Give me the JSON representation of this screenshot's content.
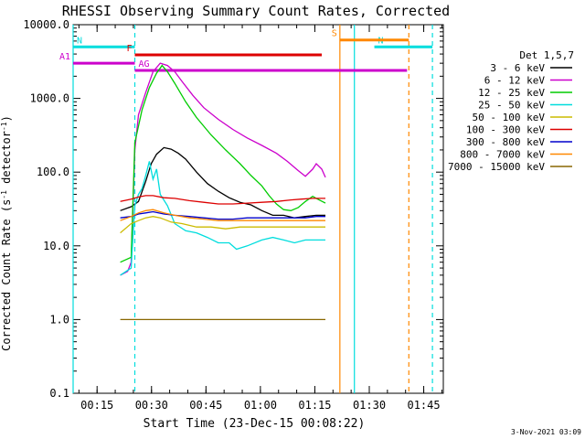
{
  "chart_data": {
    "type": "line",
    "title": "RHESSI Observing Summary Count Rates, Corrected",
    "xlabel": "Start Time (23-Dec-15 00:08:22)",
    "ylabel": "Corrected Count Rate (s⁻¹ detector⁻¹)",
    "ylabel_parts": {
      "pre": "Corrected Count Rate (s",
      "sup1": "-1",
      "mid": " detector",
      "sup2": "-1",
      "post": ")"
    },
    "x_unit": "minutes after 00:08:22",
    "xlim": [
      0,
      102
    ],
    "ylim": [
      0.1,
      10000
    ],
    "y_scale": "log",
    "grid": false,
    "x_ticks": [
      {
        "x": 6.6,
        "label": "00:15"
      },
      {
        "x": 21.6,
        "label": "00:30"
      },
      {
        "x": 36.6,
        "label": "00:45"
      },
      {
        "x": 51.6,
        "label": "01:00"
      },
      {
        "x": 66.6,
        "label": "01:15"
      },
      {
        "x": 81.6,
        "label": "01:30"
      },
      {
        "x": 96.6,
        "label": "01:45"
      }
    ],
    "y_ticks": [
      {
        "y": 0.1,
        "label": "0.1"
      },
      {
        "y": 1,
        "label": "1.0"
      },
      {
        "y": 10,
        "label": "10.0"
      },
      {
        "y": 100,
        "label": "100.0"
      },
      {
        "y": 1000,
        "label": "1000.0"
      },
      {
        "y": 10000,
        "label": "10000.0"
      }
    ],
    "legend_title": "Det 1,5,7",
    "legend_position": "right",
    "series": [
      {
        "name": "3 - 6 keV",
        "color": "#000000",
        "points": [
          [
            13,
            30
          ],
          [
            16,
            34
          ],
          [
            18,
            40
          ],
          [
            20,
            75
          ],
          [
            21.5,
            130
          ],
          [
            23,
            175
          ],
          [
            25,
            215
          ],
          [
            27,
            205
          ],
          [
            29,
            180
          ],
          [
            31,
            150
          ],
          [
            34,
            100
          ],
          [
            37,
            70
          ],
          [
            40,
            55
          ],
          [
            43,
            45
          ],
          [
            46,
            39
          ],
          [
            49,
            36
          ],
          [
            52,
            30
          ],
          [
            55,
            26
          ],
          [
            58,
            26
          ],
          [
            61,
            24
          ],
          [
            64,
            25
          ],
          [
            67,
            26
          ],
          [
            69.5,
            26
          ]
        ]
      },
      {
        "name": "6 - 12 keV",
        "color": "#cc00cc",
        "points": [
          [
            13,
            4
          ],
          [
            15,
            4.5
          ],
          [
            16,
            6
          ],
          [
            17,
            200
          ],
          [
            18,
            600
          ],
          [
            20,
            1200
          ],
          [
            22,
            2300
          ],
          [
            24,
            3000
          ],
          [
            26,
            2800
          ],
          [
            28,
            2300
          ],
          [
            30,
            1700
          ],
          [
            33,
            1100
          ],
          [
            36,
            750
          ],
          [
            40,
            520
          ],
          [
            44,
            380
          ],
          [
            48,
            290
          ],
          [
            52,
            230
          ],
          [
            56,
            180
          ],
          [
            59,
            140
          ],
          [
            62,
            105
          ],
          [
            64,
            88
          ],
          [
            66,
            110
          ],
          [
            67,
            130
          ],
          [
            68.5,
            110
          ],
          [
            69.5,
            85
          ]
        ]
      },
      {
        "name": "12 - 25 keV",
        "color": "#00cc00",
        "points": [
          [
            13,
            6
          ],
          [
            16,
            7
          ],
          [
            17,
            250
          ],
          [
            19,
            700
          ],
          [
            21,
            1400
          ],
          [
            23,
            2200
          ],
          [
            24.5,
            2800
          ],
          [
            26,
            2300
          ],
          [
            28,
            1600
          ],
          [
            31,
            900
          ],
          [
            34,
            550
          ],
          [
            38,
            320
          ],
          [
            42,
            200
          ],
          [
            46,
            130
          ],
          [
            49,
            90
          ],
          [
            52,
            65
          ],
          [
            54,
            48
          ],
          [
            56,
            37
          ],
          [
            58,
            31
          ],
          [
            60,
            30
          ],
          [
            62,
            33
          ],
          [
            64,
            40
          ],
          [
            66,
            47
          ],
          [
            67,
            44
          ],
          [
            69.5,
            38
          ]
        ]
      },
      {
        "name": "25 - 50 keV",
        "color": "#00dddd",
        "points": [
          [
            13,
            4
          ],
          [
            16,
            5
          ],
          [
            17,
            35
          ],
          [
            18,
            50
          ],
          [
            19,
            60
          ],
          [
            20,
            90
          ],
          [
            21,
            140
          ],
          [
            22,
            80
          ],
          [
            23,
            110
          ],
          [
            24,
            50
          ],
          [
            26,
            35
          ],
          [
            28,
            20
          ],
          [
            31,
            16
          ],
          [
            34,
            15
          ],
          [
            37,
            13
          ],
          [
            40,
            11
          ],
          [
            43,
            11
          ],
          [
            45,
            9
          ],
          [
            48,
            10
          ],
          [
            52,
            12
          ],
          [
            55,
            13
          ],
          [
            58,
            12
          ],
          [
            61,
            11
          ],
          [
            64,
            12
          ],
          [
            67,
            12
          ],
          [
            69.5,
            12
          ]
        ]
      },
      {
        "name": "50 - 100 keV",
        "color": "#ccbb00",
        "points": [
          [
            13,
            15
          ],
          [
            16,
            20
          ],
          [
            18,
            22
          ],
          [
            20,
            24
          ],
          [
            22,
            25
          ],
          [
            24,
            24
          ],
          [
            27,
            21
          ],
          [
            30,
            20
          ],
          [
            34,
            18
          ],
          [
            38,
            18
          ],
          [
            42,
            17
          ],
          [
            46,
            18
          ],
          [
            50,
            18
          ],
          [
            54,
            18
          ],
          [
            58,
            18
          ],
          [
            62,
            18
          ],
          [
            66,
            18
          ],
          [
            69.5,
            18
          ]
        ]
      },
      {
        "name": "100 - 300 keV",
        "color": "#dd0000",
        "points": [
          [
            13,
            40
          ],
          [
            16,
            43
          ],
          [
            18,
            46
          ],
          [
            20,
            48
          ],
          [
            22,
            48
          ],
          [
            25,
            45
          ],
          [
            28,
            44
          ],
          [
            32,
            41
          ],
          [
            36,
            39
          ],
          [
            40,
            37
          ],
          [
            44,
            37
          ],
          [
            48,
            38
          ],
          [
            52,
            39
          ],
          [
            56,
            40
          ],
          [
            60,
            42
          ],
          [
            63,
            43
          ],
          [
            66,
            44
          ],
          [
            69.5,
            44
          ]
        ]
      },
      {
        "name": "300 - 800 keV",
        "color": "#0000cc",
        "points": [
          [
            13,
            24
          ],
          [
            16,
            25
          ],
          [
            18,
            27
          ],
          [
            20,
            28
          ],
          [
            22,
            29
          ],
          [
            25,
            27
          ],
          [
            28,
            26
          ],
          [
            32,
            25
          ],
          [
            36,
            24
          ],
          [
            40,
            23
          ],
          [
            44,
            23
          ],
          [
            48,
            24
          ],
          [
            52,
            24
          ],
          [
            56,
            24
          ],
          [
            60,
            24
          ],
          [
            64,
            24
          ],
          [
            67,
            25
          ],
          [
            69.5,
            25
          ]
        ]
      },
      {
        "name": "800 - 7000 keV",
        "color": "#ff8800",
        "points": [
          [
            13,
            22
          ],
          [
            16,
            25
          ],
          [
            18,
            28
          ],
          [
            20,
            30
          ],
          [
            22,
            31
          ],
          [
            25,
            28
          ],
          [
            28,
            26
          ],
          [
            32,
            24
          ],
          [
            36,
            23
          ],
          [
            40,
            22
          ],
          [
            44,
            22
          ],
          [
            48,
            22
          ],
          [
            52,
            22
          ],
          [
            56,
            22
          ],
          [
            60,
            22
          ],
          [
            64,
            22
          ],
          [
            67,
            22
          ],
          [
            69.5,
            22
          ]
        ]
      },
      {
        "name": "7000 - 15000 keV",
        "color": "#886600",
        "points": [
          [
            13,
            1
          ],
          [
            69.5,
            1
          ]
        ]
      }
    ],
    "annotations": [
      {
        "label": "N",
        "color": "#00dddd",
        "x_start": 0,
        "x_end": 17,
        "y": 5000
      },
      {
        "label": "N",
        "color": "#00dddd",
        "x_start": 83,
        "x_end": 99,
        "y": 5000
      },
      {
        "label": "F",
        "color": "#dd0000",
        "x_start": 17,
        "x_end": 68.5,
        "y": 3900
      },
      {
        "label": "A1",
        "color": "#cc00cc",
        "x_start": 0,
        "x_end": 17,
        "y": 3000
      },
      {
        "label": "AG",
        "color": "#cc00cc",
        "x_start": 17,
        "x_end": 92,
        "y": 2400
      },
      {
        "label": "S",
        "color": "#ff8800",
        "x_start": 73.5,
        "x_end": 92.5,
        "y": 6200
      }
    ],
    "vertical_markers": [
      {
        "x": 0,
        "color": "#00dddd",
        "style": "solid"
      },
      {
        "x": 17,
        "color": "#00dddd",
        "style": "dashed"
      },
      {
        "x": 73.5,
        "color": "#ff8800",
        "style": "solid"
      },
      {
        "x": 77.5,
        "color": "#00dddd",
        "style": "solid"
      },
      {
        "x": 92.5,
        "color": "#ff8800",
        "style": "dashed"
      },
      {
        "x": 99,
        "color": "#00dddd",
        "style": "dashed"
      }
    ],
    "footer_date": "3-Nov-2021 03:09"
  }
}
